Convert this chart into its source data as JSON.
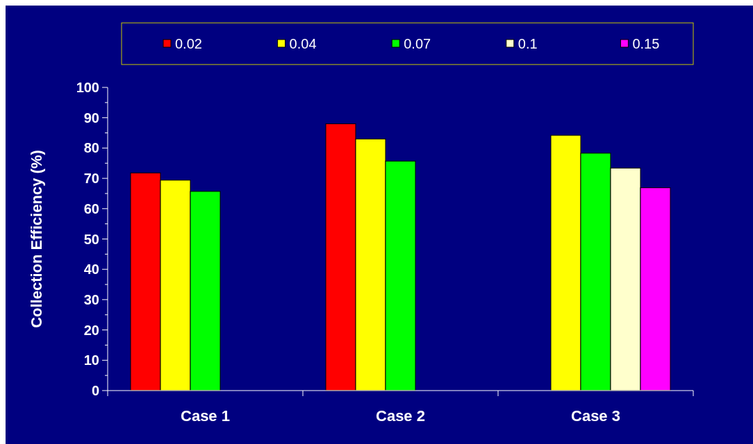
{
  "chart_data": {
    "type": "bar",
    "ylabel": "Collection Efficiency (%)",
    "categories": [
      "Case 1",
      "Case 2",
      "Case 3"
    ],
    "series": [
      {
        "name": "0.02",
        "color": "#ff0000",
        "values": [
          71.8,
          88,
          null
        ]
      },
      {
        "name": "0.04",
        "color": "#ffff00",
        "values": [
          69.4,
          83,
          84.2
        ]
      },
      {
        "name": "0.07",
        "color": "#00ff00",
        "values": [
          65.7,
          75.7,
          78.3
        ]
      },
      {
        "name": "0.1",
        "color": "#ffffcc",
        "values": [
          null,
          null,
          73.4
        ]
      },
      {
        "name": "0.15",
        "color": "#ff00ff",
        "values": [
          null,
          null,
          66.9
        ]
      }
    ],
    "ylim": [
      0,
      100
    ],
    "yticks": [
      0,
      10,
      20,
      30,
      40,
      50,
      60,
      70,
      80,
      90,
      100
    ],
    "grid": false,
    "legend": "top"
  }
}
